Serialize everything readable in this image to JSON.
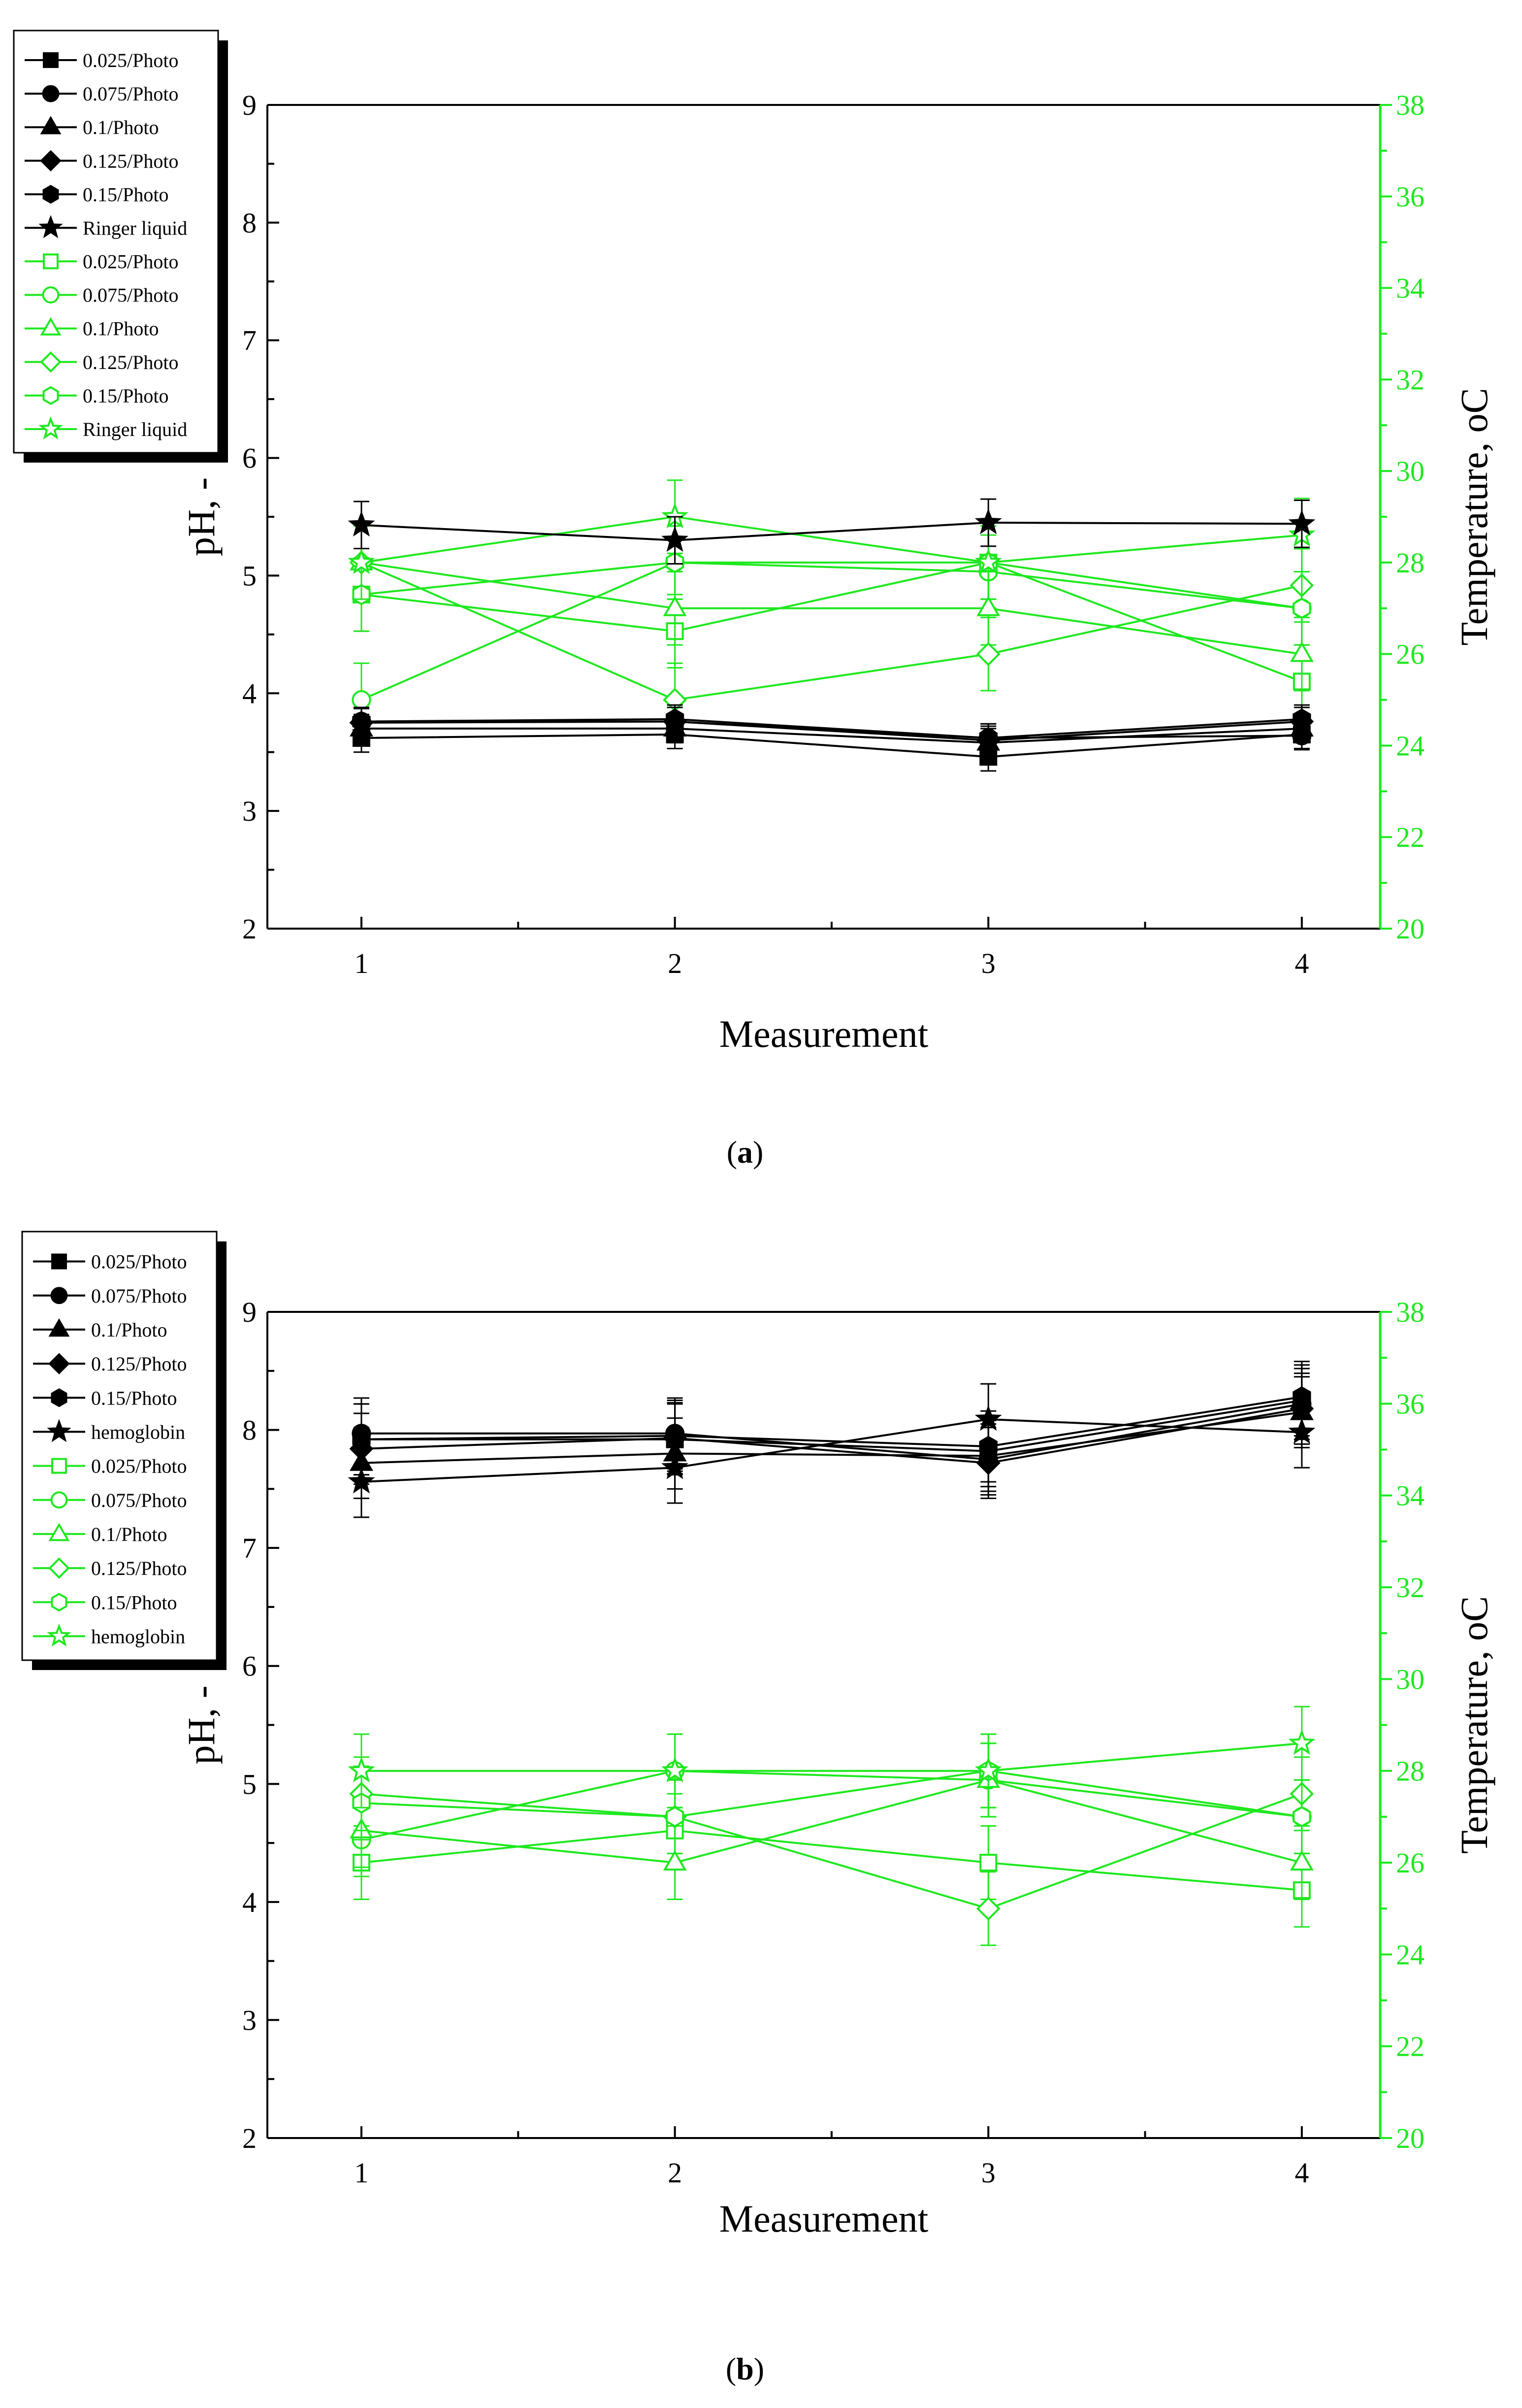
{
  "colors": {
    "black": "#000000",
    "green": "#1ee81e"
  },
  "chart_data": [
    {
      "panel": "a",
      "panel_label_prefix": "(",
      "panel_label_letter": "a",
      "panel_label_suffix": ")",
      "type": "line",
      "xlabel": "Measurement",
      "ylabel": "pH, -",
      "y2label_text": "Temperature, ",
      "y2label_unit": "oC",
      "x": [
        1,
        2,
        3,
        4
      ],
      "xlim": [
        0.7,
        4.25
      ],
      "ylim": [
        2,
        9
      ],
      "y2lim": [
        20,
        38
      ],
      "x_ticks": [
        "1",
        "2",
        "3",
        "4"
      ],
      "y_ticks": [
        "2",
        "3",
        "4",
        "5",
        "6",
        "7",
        "8",
        "9"
      ],
      "y2_ticks": [
        "20",
        "22",
        "24",
        "26",
        "28",
        "30",
        "32",
        "34",
        "36",
        "38"
      ],
      "legend": [
        "0.025/Photo",
        "0.075/Photo",
        "0.1/Photo",
        "0.125/Photo",
        "0.15/Photo",
        "Ringer liquid",
        "0.025/Photo",
        "0.075/Photo",
        "0.1/Photo",
        "0.125/Photo",
        "0.15/Photo",
        "Ringer liquid"
      ],
      "ph_series": [
        {
          "name": "0.025/Photo",
          "marker": "square",
          "values": [
            3.62,
            3.65,
            3.46,
            3.65
          ],
          "err": [
            0.12,
            0.12,
            0.12,
            0.12
          ]
        },
        {
          "name": "0.075/Photo",
          "marker": "circle",
          "values": [
            3.76,
            3.76,
            3.62,
            3.64
          ],
          "err": [
            0.12,
            0.12,
            0.12,
            0.12
          ]
        },
        {
          "name": "0.1/Photo",
          "marker": "triangle",
          "values": [
            3.7,
            3.7,
            3.58,
            3.7
          ],
          "err": [
            0.12,
            0.12,
            0.12,
            0.12
          ]
        },
        {
          "name": "0.125/Photo",
          "marker": "diamond",
          "values": [
            3.75,
            3.76,
            3.6,
            3.76
          ],
          "err": [
            0.12,
            0.12,
            0.12,
            0.12
          ]
        },
        {
          "name": "0.15/Photo",
          "marker": "hexagon",
          "values": [
            3.76,
            3.78,
            3.62,
            3.78
          ],
          "err": [
            0.12,
            0.12,
            0.12,
            0.12
          ]
        },
        {
          "name": "Ringer liquid",
          "marker": "star",
          "values": [
            5.43,
            5.3,
            5.45,
            5.44
          ],
          "err": [
            0.2,
            0.2,
            0.2,
            0.2
          ]
        }
      ],
      "temp_series": [
        {
          "name": "0.025/Photo",
          "marker": "square",
          "values": [
            27.3,
            26.5,
            28.0,
            25.4
          ],
          "err": [
            0.8,
            0.8,
            0.8,
            0.8
          ]
        },
        {
          "name": "0.075/Photo",
          "marker": "circle",
          "values": [
            25.0,
            28.0,
            27.8,
            27.0
          ],
          "err": [
            0.8,
            0.8,
            0.8,
            0.8
          ]
        },
        {
          "name": "0.1/Photo",
          "marker": "triangle",
          "values": [
            28.0,
            27.0,
            27.0,
            26.0
          ],
          "err": [
            0.8,
            0.8,
            0.8,
            0.8
          ]
        },
        {
          "name": "0.125/Photo",
          "marker": "diamond",
          "values": [
            28.0,
            25.0,
            26.0,
            27.5
          ],
          "err": [
            0.8,
            0.8,
            0.8,
            0.8
          ]
        },
        {
          "name": "0.15/Photo",
          "marker": "hexagon",
          "values": [
            27.3,
            28.0,
            28.0,
            27.0
          ],
          "err": [
            0.8,
            0.8,
            0.8,
            0.8
          ]
        },
        {
          "name": "Ringer liquid",
          "marker": "star",
          "values": [
            28.0,
            29.0,
            28.0,
            28.6
          ],
          "err": [
            0.8,
            0.8,
            0.8,
            0.8
          ]
        }
      ]
    },
    {
      "panel": "b",
      "panel_label_prefix": "(",
      "panel_label_letter": "b",
      "panel_label_suffix": ")",
      "type": "line",
      "xlabel": "Measurement",
      "ylabel": "pH, -",
      "y2label_text": "Temperature, ",
      "y2label_unit": "oC",
      "x": [
        1,
        2,
        3,
        4
      ],
      "xlim": [
        0.7,
        4.25
      ],
      "ylim": [
        2,
        9
      ],
      "y2lim": [
        20,
        38
      ],
      "x_ticks": [
        "1",
        "2",
        "3",
        "4"
      ],
      "y_ticks": [
        "2",
        "3",
        "4",
        "5",
        "6",
        "7",
        "8",
        "9"
      ],
      "y2_ticks": [
        "20",
        "22",
        "24",
        "26",
        "28",
        "30",
        "32",
        "34",
        "36",
        "38"
      ],
      "legend": [
        "0.025/Photo",
        "0.075/Photo",
        "0.1/Photo",
        "0.125/Photo",
        "0.15/Photo",
        "hemoglobin",
        "0.025/Photo",
        "0.075/Photo",
        "0.1/Photo",
        "0.125/Photo",
        "0.15/Photo",
        "hemoglobin"
      ],
      "ph_series": [
        {
          "name": "0.025/Photo",
          "marker": "square",
          "values": [
            7.92,
            7.92,
            7.82,
            8.25
          ],
          "err": [
            0.3,
            0.3,
            0.3,
            0.3
          ]
        },
        {
          "name": "0.075/Photo",
          "marker": "circle",
          "values": [
            7.97,
            7.97,
            7.75,
            8.22
          ],
          "err": [
            0.3,
            0.3,
            0.3,
            0.3
          ]
        },
        {
          "name": "0.1/Photo",
          "marker": "triangle",
          "values": [
            7.72,
            7.8,
            7.78,
            8.15
          ],
          "err": [
            0.3,
            0.3,
            0.3,
            0.3
          ]
        },
        {
          "name": "0.125/Photo",
          "marker": "diamond",
          "values": [
            7.84,
            7.93,
            7.72,
            8.18
          ],
          "err": [
            0.3,
            0.3,
            0.3,
            0.3
          ]
        },
        {
          "name": "0.15/Photo",
          "marker": "hexagon",
          "values": [
            7.92,
            7.95,
            7.86,
            8.28
          ],
          "err": [
            0.3,
            0.3,
            0.3,
            0.3
          ]
        },
        {
          "name": "hemoglobin",
          "marker": "star",
          "values": [
            7.56,
            7.68,
            8.09,
            7.98
          ],
          "err": [
            0.3,
            0.3,
            0.3,
            0.3
          ]
        }
      ],
      "temp_series": [
        {
          "name": "0.025/Photo",
          "marker": "square",
          "values": [
            26.0,
            26.7,
            26.0,
            25.4
          ],
          "err": [
            0.8,
            0.8,
            0.8,
            0.8
          ]
        },
        {
          "name": "0.075/Photo",
          "marker": "circle",
          "values": [
            26.5,
            28.0,
            27.8,
            27.0
          ],
          "err": [
            0.8,
            0.8,
            0.8,
            0.8
          ]
        },
        {
          "name": "0.1/Photo",
          "marker": "triangle",
          "values": [
            26.7,
            26.0,
            27.8,
            26.0
          ],
          "err": [
            0.8,
            0.8,
            0.8,
            0.8
          ]
        },
        {
          "name": "0.125/Photo",
          "marker": "diamond",
          "values": [
            27.5,
            27.0,
            25.0,
            27.5
          ],
          "err": [
            0.8,
            0.8,
            0.8,
            0.8
          ]
        },
        {
          "name": "0.15/Photo",
          "marker": "hexagon",
          "values": [
            27.3,
            27.0,
            28.0,
            27.0
          ],
          "err": [
            0.8,
            0.8,
            0.8,
            0.8
          ]
        },
        {
          "name": "hemoglobin",
          "marker": "star",
          "values": [
            28.0,
            28.0,
            28.0,
            28.6
          ],
          "err": [
            0.8,
            0.8,
            0.8,
            0.8
          ]
        }
      ]
    }
  ]
}
